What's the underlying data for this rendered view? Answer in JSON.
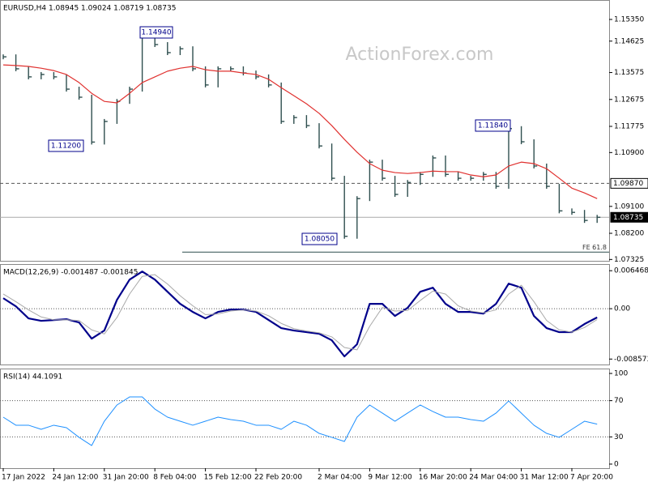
{
  "chart_data": [
    {
      "type": "line",
      "title": "EURUSD,H4  1.08945 1.09024 1.08719 1.08735",
      "watermark": "ActionForex.com",
      "ylim": [
        1.0728,
        1.16
      ],
      "yticks": [
        {
          "value": 1.1535,
          "label": "1.15350"
        },
        1.14625,
        1.13575,
        1.12675,
        1.11775,
        {
          "value": 1.109,
          "label": "1.10900"
        },
        {
          "value": 1.091,
          "label": "1.09100"
        },
        {
          "value": 1.082,
          "label": "1.08200"
        },
        1.07325
      ],
      "series": [
        {
          "color": "#2f4f4f",
          "style": "bars",
          "values": [
            1.141,
            1.137,
            1.1343,
            1.1351,
            1.1343,
            1.1302,
            1.1275,
            1.1125,
            1.1194,
            1.1261,
            1.1302,
            1.1488,
            1.1451,
            1.1424,
            1.1437,
            1.137,
            1.1316,
            1.137,
            1.137,
            1.1356,
            1.1343,
            1.1316,
            1.1194,
            1.1207,
            1.118,
            1.1112,
            1.1004,
            1.081,
            1.0936,
            1.1058,
            1.1004,
            1.095,
            1.099,
            1.1017,
            1.1072,
            1.1017,
            1.1004,
            1.1004,
            1.1017,
            1.0977,
            1.117,
            1.1126,
            1.1045,
            1.0977,
            1.0895,
            1.089,
            1.0863,
            1.08735
          ]
        },
        {
          "color": "#e0312f",
          "style": "line",
          "values": [
            1.1383,
            1.1381,
            1.1378,
            1.1372,
            1.1364,
            1.1351,
            1.1324,
            1.1288,
            1.1261,
            1.1256,
            1.1288,
            1.1324,
            1.1343,
            1.1362,
            1.1372,
            1.1378,
            1.1367,
            1.1362,
            1.1362,
            1.1356,
            1.1351,
            1.1335,
            1.1307,
            1.128,
            1.1253,
            1.1221,
            1.118,
            1.1134,
            1.1091,
            1.1053,
            1.1031,
            1.1023,
            1.102,
            1.1023,
            1.1028,
            1.1026,
            1.1026,
            1.1015,
            1.1009,
            1.1015,
            1.1045,
            1.1058,
            1.1053,
            1.1036,
            1.1004,
            1.0971,
            1.0955,
            1.0936
          ]
        }
      ],
      "levels": [
        {
          "value": 1.0987,
          "label": "1.09870",
          "style": "dashed"
        },
        {
          "value": 1.08735,
          "label": "1.08735",
          "style": "solid"
        }
      ],
      "annotations": [
        {
          "text": "1.14940"
        },
        {
          "text": "1.11200"
        },
        {
          "text": "1.08050"
        },
        {
          "text": "1.11840"
        }
      ],
      "fe_level": {
        "value": 1.0757,
        "label": "FE 61.8"
      }
    },
    {
      "type": "line",
      "title": "MACD(12,26,9) -0.001487 -0.001845",
      "ylim": [
        -0.0095,
        0.0076
      ],
      "yticks": [
        0.006468,
        {
          "value": 0,
          "label": "0.00"
        },
        -0.008573
      ],
      "series": [
        {
          "color": "#00008b",
          "style": "line",
          "width": 2.2,
          "values": [
            0.00179,
            0.00041,
            -0.00165,
            -0.00206,
            -0.00193,
            -0.00179,
            -0.00234,
            -0.00509,
            -0.00372,
            0.00151,
            0.00495,
            0.00633,
            0.00495,
            0.00289,
            0.00083,
            -0.00055,
            -0.00165,
            -0.00055,
            -0.00014,
            -0.00014,
            -0.00055,
            -0.00193,
            -0.0033,
            -0.00372,
            -0.00399,
            -0.00427,
            -0.00537,
            -0.00812,
            -0.00605,
            0.00083,
            0.00083,
            -0.00124,
            0.00014,
            0.00289,
            0.00358,
            0.00083,
            -0.00055,
            -0.00055,
            -0.00083,
            0.00083,
            0.00427,
            0.00358,
            -0.00124,
            -0.0033,
            -0.00399,
            -0.00399,
            -0.00261,
            -0.001487
          ]
        },
        {
          "color": "#a9a9a9",
          "style": "line",
          "width": 1,
          "values": [
            0.0025,
            0.0012,
            -0.0002,
            -0.0014,
            -0.0019,
            -0.0019,
            -0.002,
            -0.0036,
            -0.0043,
            -0.0015,
            0.0025,
            0.0055,
            0.0058,
            0.0042,
            0.0022,
            0.0005,
            -0.001,
            -0.0009,
            -0.0004,
            -0.0002,
            -0.0004,
            -0.0012,
            -0.0025,
            -0.0034,
            -0.0038,
            -0.0041,
            -0.0048,
            -0.0066,
            -0.007,
            -0.003,
            0.0002,
            -0.0004,
            -0.0003,
            0.0014,
            0.003,
            0.0025,
            0.0005,
            -0.0004,
            -0.0007,
            -0.0002,
            0.0025,
            0.004,
            0.0012,
            -0.002,
            -0.0036,
            -0.004,
            -0.0032,
            -0.001845
          ]
        }
      ],
      "levels": [
        {
          "value": 0,
          "style": "dotted"
        }
      ]
    },
    {
      "type": "line",
      "title": "RSI(14) 44.1091",
      "ylim": [
        -4.5,
        105.4
      ],
      "yticks": [
        100,
        70,
        30,
        0
      ],
      "categories": [
        "17 Jan 2022",
        null,
        null,
        null,
        "24 Jan 12:00",
        null,
        null,
        null,
        "31 Jan 20:00",
        null,
        null,
        null,
        "8 Feb 04:00",
        null,
        null,
        null,
        "15 Feb 12:00",
        null,
        null,
        null,
        "22 Feb 20:00",
        null,
        null,
        null,
        null,
        "2 Mar 04:00",
        null,
        null,
        null,
        "9 Mar 12:00",
        null,
        null,
        null,
        "16 Mar 20:00",
        null,
        null,
        null,
        "24 Mar 04:00",
        null,
        null,
        null,
        "31 Mar 12:00",
        null,
        null,
        null,
        "7 Apr 20:00",
        null,
        null
      ],
      "series": [
        {
          "color": "#1e90ff",
          "style": "line",
          "width": 1,
          "values": [
            51.8,
            42.9,
            42.9,
            38.4,
            42.9,
            40.2,
            29.5,
            20.5,
            47.3,
            65.2,
            74.1,
            74.1,
            60.7,
            51.8,
            47.3,
            42.9,
            47.3,
            51.8,
            49.1,
            47.3,
            42.9,
            42.9,
            38.4,
            47.3,
            42.9,
            33.9,
            29.5,
            25.0,
            51.8,
            65.2,
            56.3,
            47.3,
            56.3,
            65.2,
            58.0,
            51.8,
            51.8,
            49.1,
            47.3,
            56.3,
            69.6,
            56.3,
            42.9,
            33.9,
            29.5,
            38.4,
            47.3,
            44.1091
          ]
        }
      ],
      "levels": [
        {
          "value": 70,
          "style": "dotted"
        },
        {
          "value": 30,
          "style": "dotted"
        }
      ]
    }
  ]
}
